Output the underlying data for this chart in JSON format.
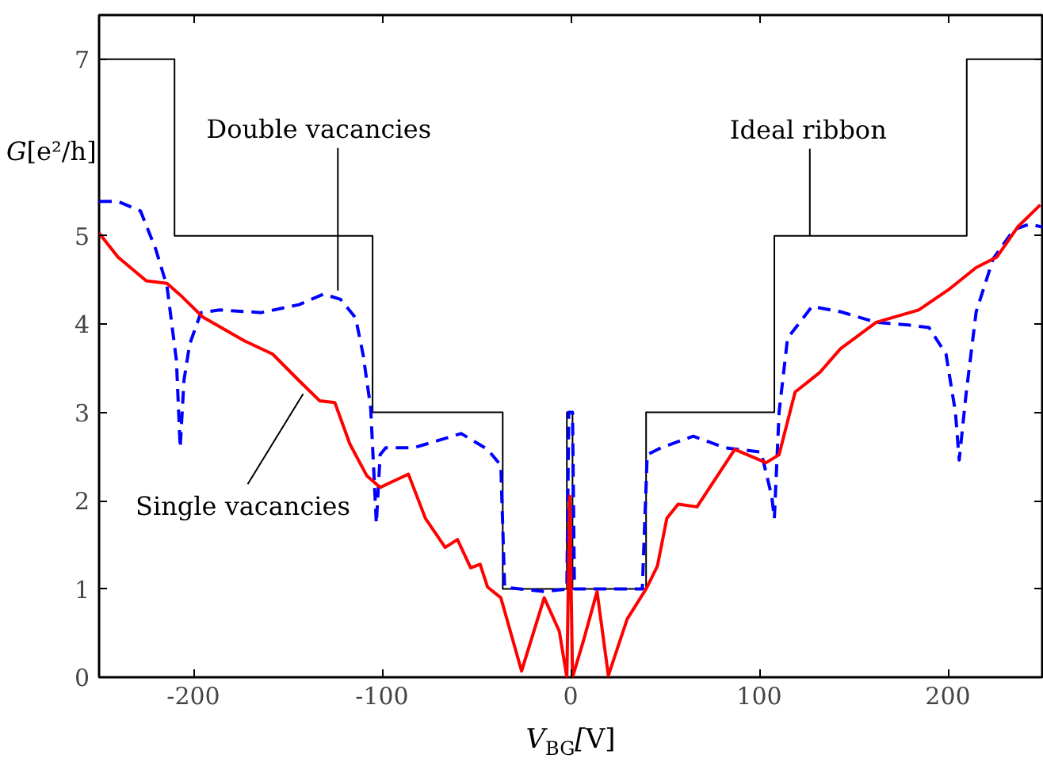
{
  "chart_data": {
    "type": "line",
    "xlabel": "V$_{BG}$[V]",
    "ylabel": "G[e²/h]",
    "xlim": [
      -250,
      250
    ],
    "ylim": [
      0,
      7.5
    ],
    "xticks": [
      -200,
      -100,
      0,
      100,
      200
    ],
    "yticks": [
      0,
      1,
      2,
      3,
      4,
      5,
      7
    ],
    "grid": false,
    "series": [
      {
        "color": "#000000",
        "line_style": "solid",
        "x": [
          -250,
          -210,
          -210,
          -105,
          -105,
          -36,
          -36,
          -2,
          -2,
          1,
          1,
          40,
          40,
          108,
          108,
          210,
          210,
          250
        ],
        "values": [
          7,
          7,
          5,
          5,
          3,
          3,
          1,
          1,
          3,
          3,
          1,
          1,
          3,
          3,
          5,
          5,
          7,
          7
        ]
      },
      {
        "color": "#0000ff",
        "line_style": "dashed",
        "x": [
          -250,
          -240,
          -228,
          -220,
          -214,
          -209,
          -207,
          -205,
          -202,
          -196,
          -186,
          -164,
          -144,
          -131,
          -122,
          -114,
          -110,
          -106,
          -103,
          -101,
          -98,
          -83,
          -58,
          -44,
          -37,
          -35,
          -14,
          -2,
          -1,
          1,
          2,
          20,
          38,
          40.6,
          48,
          65,
          81.6,
          101,
          106.6,
          108,
          110.5,
          115,
          128,
          143,
          162,
          179,
          190,
          199,
          204,
          206,
          209.6,
          215,
          224,
          235,
          243,
          250
        ],
        "values": [
          5.39,
          5.39,
          5.28,
          4.85,
          4.43,
          3.59,
          2.6,
          3.36,
          3.77,
          4.13,
          4.16,
          4.13,
          4.22,
          4.34,
          4.28,
          4.07,
          3.65,
          3.05,
          1.74,
          2.52,
          2.6,
          2.6,
          2.76,
          2.58,
          2.4,
          1.02,
          0.97,
          1.0,
          3.0,
          3.0,
          1.0,
          1.0,
          1.0,
          2.52,
          2.6,
          2.73,
          2.6,
          2.55,
          2.05,
          1.8,
          3.0,
          3.84,
          4.2,
          4.14,
          4.02,
          3.99,
          3.96,
          3.66,
          3.0,
          2.46,
          3.2,
          4.14,
          4.74,
          5.07,
          5.13,
          5.1
        ]
      },
      {
        "color": "#ff0000",
        "line_style": "solid",
        "x": [
          -250,
          -240,
          -225,
          -214,
          -206,
          -195,
          -173,
          -158,
          -144,
          -133,
          -125,
          -117,
          -108,
          -101,
          -94,
          -86,
          -77,
          -66.5,
          -60,
          -53,
          -48,
          -44,
          -37,
          -26,
          -14,
          -6,
          -2,
          -0.5,
          1,
          7,
          14,
          20,
          30,
          40,
          46,
          51,
          57,
          67,
          87,
          103.6,
          110.5,
          119,
          132,
          143,
          162,
          184.5,
          201,
          215,
          226,
          237,
          249
        ],
        "values": [
          5.03,
          4.76,
          4.49,
          4.46,
          4.31,
          4.08,
          3.81,
          3.66,
          3.36,
          3.13,
          3.11,
          2.64,
          2.28,
          2.15,
          2.22,
          2.3,
          1.8,
          1.47,
          1.56,
          1.24,
          1.28,
          1.02,
          0.9,
          0.07,
          0.9,
          0.52,
          0.0,
          2.05,
          0.0,
          0.43,
          0.97,
          0.02,
          0.66,
          1.0,
          1.26,
          1.8,
          1.96,
          1.93,
          2.58,
          2.43,
          2.52,
          3.23,
          3.45,
          3.72,
          4.02,
          4.16,
          4.4,
          4.64,
          4.76,
          5.1,
          5.35
        ]
      }
    ],
    "annotations": [
      {
        "text": "Double vacancies",
        "x": -123.4,
        "y": 4.38
      },
      {
        "text": "Ideal ribbon",
        "x": 126.8,
        "y": 5.0
      },
      {
        "text": "Single vacancies",
        "x": -141.8,
        "y": 3.21
      }
    ]
  }
}
